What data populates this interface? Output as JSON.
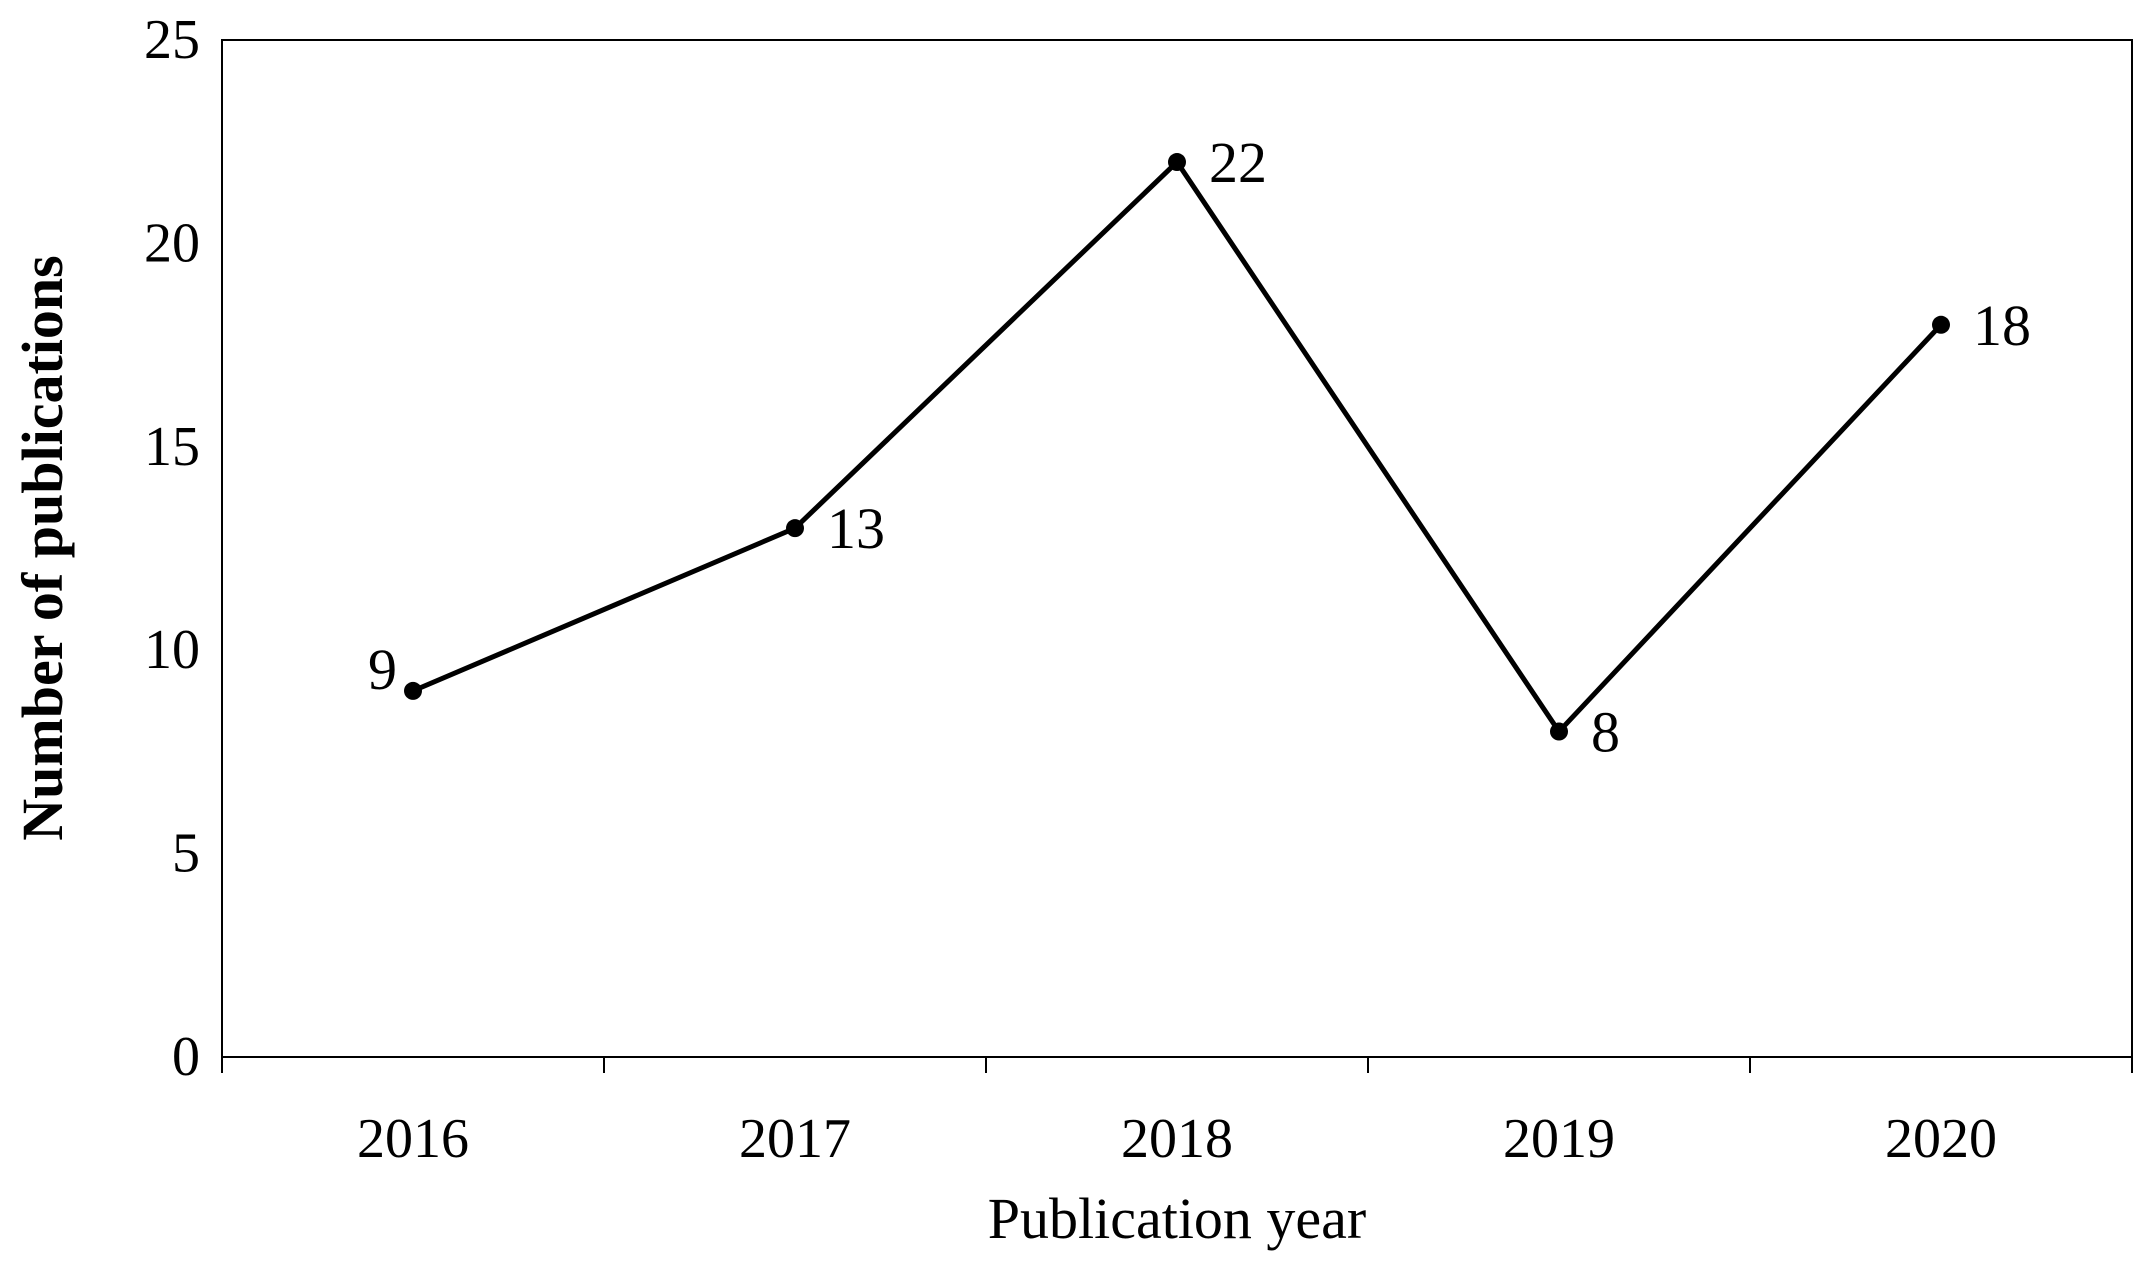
{
  "chart_data": {
    "type": "line",
    "title": "",
    "xlabel": "Publication year",
    "ylabel": "Number of publications",
    "categories": [
      "2016",
      "2017",
      "2018",
      "2019",
      "2020"
    ],
    "series": [
      {
        "values": [
          9,
          13,
          22,
          8,
          18
        ],
        "data_labels": [
          "9",
          "13",
          "22",
          "8",
          "18"
        ],
        "color": "#000000",
        "marker": "circle"
      }
    ],
    "ylim": [
      0,
      25
    ],
    "yticks": [
      0,
      5,
      10,
      15,
      20,
      25
    ],
    "ytick_labels": [
      "0",
      "5",
      "10",
      "15",
      "20",
      "25"
    ],
    "grid": false,
    "legend": "none",
    "data_label_placement": [
      "left",
      "right",
      "right",
      "right",
      "right"
    ]
  }
}
